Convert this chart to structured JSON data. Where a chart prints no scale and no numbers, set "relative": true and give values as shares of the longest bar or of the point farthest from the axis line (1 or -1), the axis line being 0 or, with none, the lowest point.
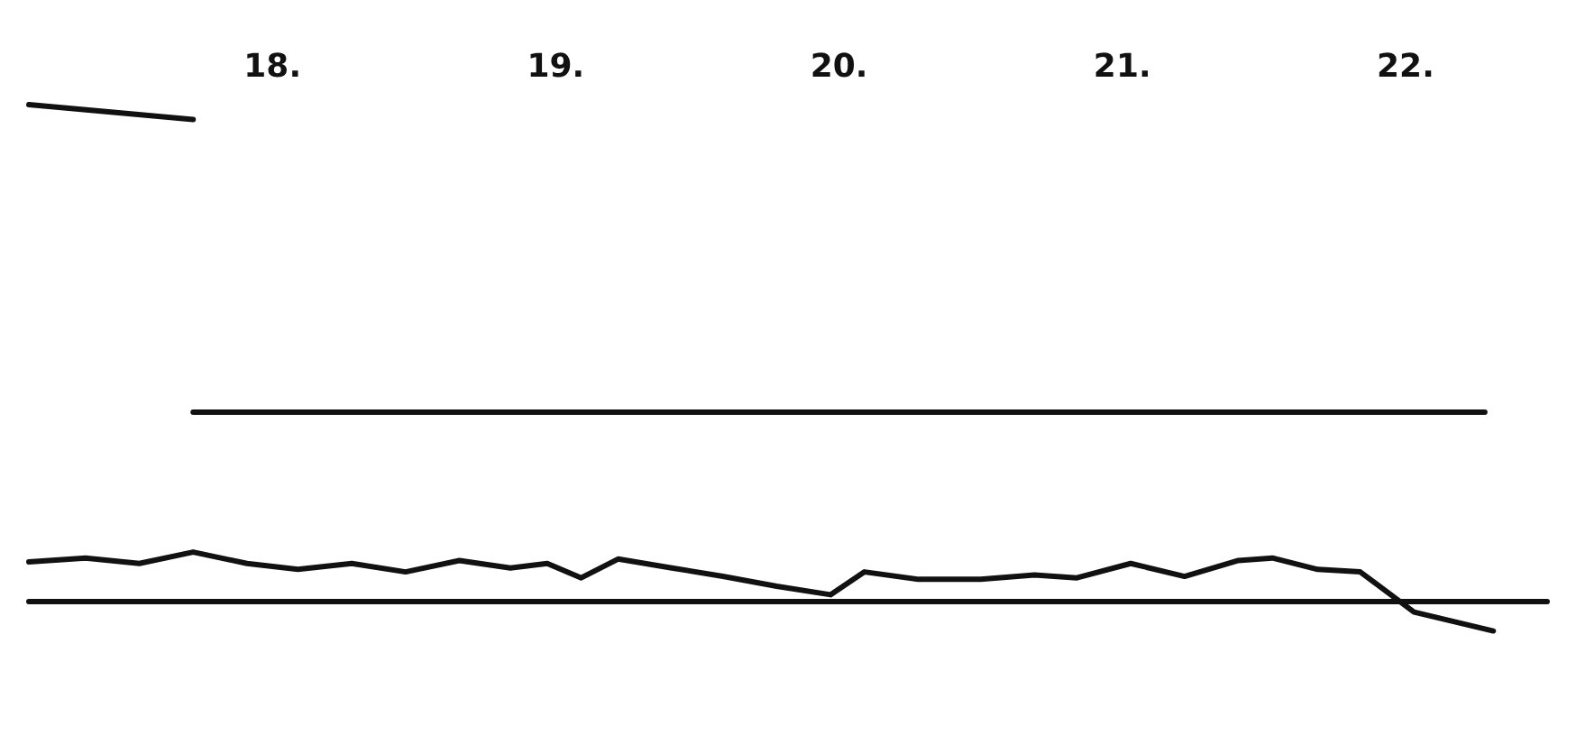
{
  "chart_data": {
    "type": "line",
    "relative": true,
    "xlim": [
      17.64,
      23.0
    ],
    "xticks": [
      {
        "value": 18.5,
        "label": "18."
      },
      {
        "value": 19.5,
        "label": "19."
      },
      {
        "value": 20.5,
        "label": "20."
      },
      {
        "value": 21.5,
        "label": "21."
      },
      {
        "value": 22.5,
        "label": "22."
      }
    ],
    "marker": "none",
    "line_style": "solid",
    "series": [
      {
        "color": "#111111",
        "x": [
          17.64,
          18.22
        ],
        "values": [
          1.0,
          0.97
        ]
      },
      {
        "color": "#111111",
        "x": [
          18.22,
          22.78
        ],
        "values": [
          0.38,
          0.38
        ]
      },
      {
        "color": "#111111",
        "x": [
          17.64,
          17.84,
          18.03,
          18.22,
          18.41,
          18.59,
          18.78,
          18.97,
          19.16,
          19.34,
          19.47,
          19.59,
          19.72,
          19.91,
          20.09,
          20.28,
          20.47,
          20.59,
          20.78,
          21.0,
          21.19,
          21.34,
          21.53,
          21.72,
          21.91,
          22.03,
          22.19,
          22.34,
          22.53,
          22.81
        ],
        "values": [
          0.078,
          0.086,
          0.075,
          0.098,
          0.075,
          0.063,
          0.075,
          0.058,
          0.081,
          0.066,
          0.075,
          0.046,
          0.084,
          0.066,
          0.049,
          0.029,
          0.012,
          0.058,
          0.043,
          0.043,
          0.052,
          0.046,
          0.075,
          0.049,
          0.081,
          0.086,
          0.063,
          0.058,
          -0.023,
          -0.061
        ]
      }
    ]
  }
}
